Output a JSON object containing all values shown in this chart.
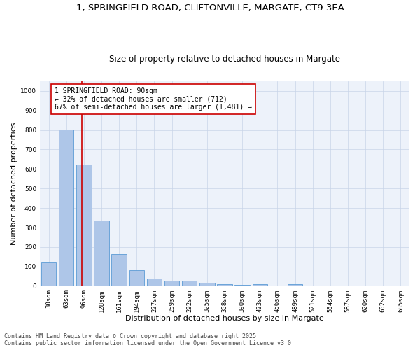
{
  "title_line1": "1, SPRINGFIELD ROAD, CLIFTONVILLE, MARGATE, CT9 3EA",
  "title_line2": "Size of property relative to detached houses in Margate",
  "xlabel": "Distribution of detached houses by size in Margate",
  "ylabel": "Number of detached properties",
  "categories": [
    "30sqm",
    "63sqm",
    "96sqm",
    "128sqm",
    "161sqm",
    "194sqm",
    "227sqm",
    "259sqm",
    "292sqm",
    "325sqm",
    "358sqm",
    "390sqm",
    "423sqm",
    "456sqm",
    "489sqm",
    "521sqm",
    "554sqm",
    "587sqm",
    "620sqm",
    "652sqm",
    "685sqm"
  ],
  "values": [
    122,
    803,
    622,
    337,
    163,
    80,
    40,
    28,
    26,
    17,
    10,
    7,
    10,
    0,
    8,
    0,
    0,
    0,
    0,
    0,
    0
  ],
  "bar_color": "#aec6e8",
  "bar_edge_color": "#5b9bd5",
  "vline_color": "#cc0000",
  "vline_x": 1.9,
  "annotation_text": "1 SPRINGFIELD ROAD: 90sqm\n← 32% of detached houses are smaller (712)\n67% of semi-detached houses are larger (1,481) →",
  "annotation_box_color": "#ffffff",
  "annotation_box_edge": "#cc0000",
  "ylim": [
    0,
    1050
  ],
  "yticks": [
    0,
    100,
    200,
    300,
    400,
    500,
    600,
    700,
    800,
    900,
    1000
  ],
  "grid_color": "#c8d4e8",
  "background_color": "#edf2fa",
  "footer_line1": "Contains HM Land Registry data © Crown copyright and database right 2025.",
  "footer_line2": "Contains public sector information licensed under the Open Government Licence v3.0.",
  "title_fontsize": 9.5,
  "subtitle_fontsize": 8.5,
  "axis_label_fontsize": 8,
  "tick_fontsize": 6.5,
  "annotation_fontsize": 7,
  "footer_fontsize": 6
}
